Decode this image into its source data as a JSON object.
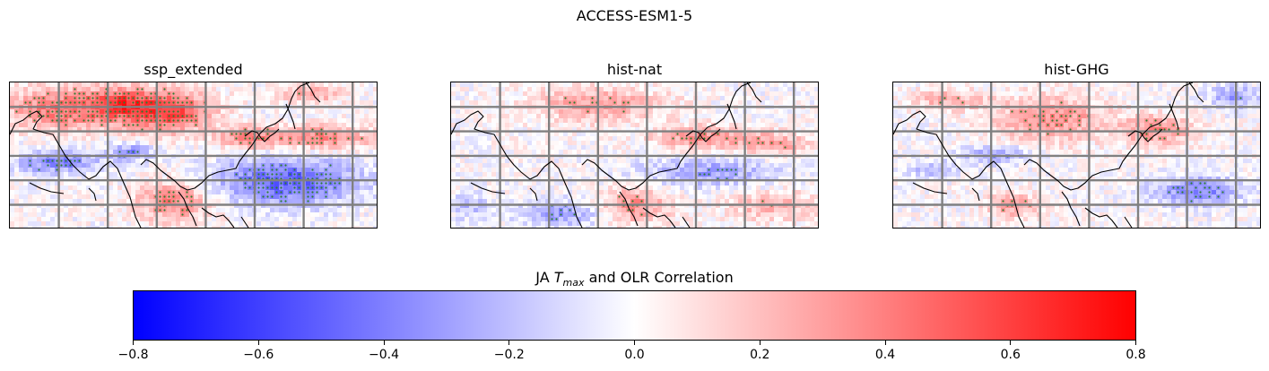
{
  "suptitle": "ACCESS-ESM1-5",
  "panels": [
    {
      "title": "ssp_extended"
    },
    {
      "title": "hist-nat"
    },
    {
      "title": "hist-GHG"
    }
  ],
  "colorbar": {
    "label_prefix": "JA ",
    "label_var": "T",
    "label_sub": "max",
    "label_suffix": " and OLR Correlation",
    "ticks": [
      "−0.8",
      "−0.6",
      "−0.4",
      "−0.2",
      "0.0",
      "0.2",
      "0.4",
      "0.6",
      "0.8"
    ],
    "vmin": -0.8,
    "vmax": 0.8,
    "cmap": "bwr",
    "colors": {
      "low": "#0000ff",
      "mid": "#ffffff",
      "high": "#ff0000"
    }
  },
  "chart_data": {
    "type": "heatmap",
    "title": "ACCESS-ESM1-5",
    "colorbar_label": "JA T_max and OLR Correlation",
    "vmin": -0.8,
    "vmax": 0.8,
    "colormap": "bwr",
    "stipple_color": "#2e7d32",
    "gridline_color": "#808080",
    "coastline_color": "#000000",
    "maps": [
      {
        "name": "ssp_extended",
        "features": [
          {
            "kind": "positive",
            "value": 0.45,
            "cx": 0.15,
            "cy": 0.18,
            "rx": 0.16,
            "ry": 0.15
          },
          {
            "kind": "positive",
            "value": 0.6,
            "cx": 0.43,
            "cy": 0.2,
            "rx": 0.12,
            "ry": 0.14
          },
          {
            "kind": "positive",
            "value": 0.35,
            "cx": 0.3,
            "cy": 0.14,
            "rx": 0.08,
            "ry": 0.1
          },
          {
            "kind": "positive",
            "value": 0.4,
            "cx": 0.85,
            "cy": 0.38,
            "rx": 0.14,
            "ry": 0.08
          },
          {
            "kind": "positive",
            "value": 0.35,
            "cx": 0.65,
            "cy": 0.38,
            "rx": 0.08,
            "ry": 0.08
          },
          {
            "kind": "positive",
            "value": 0.4,
            "cx": 0.45,
            "cy": 0.82,
            "rx": 0.1,
            "ry": 0.14
          },
          {
            "kind": "positive",
            "value": 0.3,
            "cx": 0.82,
            "cy": 0.08,
            "rx": 0.08,
            "ry": 0.06
          },
          {
            "kind": "negative",
            "value": -0.5,
            "cx": 0.75,
            "cy": 0.68,
            "rx": 0.2,
            "ry": 0.16
          },
          {
            "kind": "negative",
            "value": -0.4,
            "cx": 0.13,
            "cy": 0.55,
            "rx": 0.11,
            "ry": 0.08
          },
          {
            "kind": "negative",
            "value": -0.35,
            "cx": 0.33,
            "cy": 0.48,
            "rx": 0.06,
            "ry": 0.06
          }
        ]
      },
      {
        "name": "hist-nat",
        "features": [
          {
            "kind": "positive",
            "value": 0.3,
            "cx": 0.4,
            "cy": 0.15,
            "rx": 0.18,
            "ry": 0.12
          },
          {
            "kind": "positive",
            "value": 0.35,
            "cx": 0.68,
            "cy": 0.38,
            "rx": 0.12,
            "ry": 0.08
          },
          {
            "kind": "positive",
            "value": 0.3,
            "cx": 0.88,
            "cy": 0.42,
            "rx": 0.1,
            "ry": 0.08
          },
          {
            "kind": "positive",
            "value": 0.35,
            "cx": 0.5,
            "cy": 0.85,
            "rx": 0.1,
            "ry": 0.12
          },
          {
            "kind": "positive",
            "value": 0.25,
            "cx": 0.88,
            "cy": 0.85,
            "rx": 0.12,
            "ry": 0.1
          },
          {
            "kind": "negative",
            "value": -0.3,
            "cx": 0.7,
            "cy": 0.62,
            "rx": 0.18,
            "ry": 0.1
          },
          {
            "kind": "negative",
            "value": -0.3,
            "cx": 0.3,
            "cy": 0.9,
            "rx": 0.12,
            "ry": 0.09
          },
          {
            "kind": "negative",
            "value": -0.2,
            "cx": 0.05,
            "cy": 0.85,
            "rx": 0.05,
            "ry": 0.1
          }
        ]
      },
      {
        "name": "hist-GHG",
        "features": [
          {
            "kind": "positive",
            "value": 0.35,
            "cx": 0.43,
            "cy": 0.25,
            "rx": 0.15,
            "ry": 0.15
          },
          {
            "kind": "positive",
            "value": 0.35,
            "cx": 0.72,
            "cy": 0.33,
            "rx": 0.1,
            "ry": 0.1
          },
          {
            "kind": "positive",
            "value": 0.3,
            "cx": 0.33,
            "cy": 0.85,
            "rx": 0.08,
            "ry": 0.08
          },
          {
            "kind": "positive",
            "value": 0.25,
            "cx": 0.15,
            "cy": 0.12,
            "rx": 0.1,
            "ry": 0.07
          },
          {
            "kind": "negative",
            "value": -0.4,
            "cx": 0.83,
            "cy": 0.75,
            "rx": 0.12,
            "ry": 0.1
          },
          {
            "kind": "negative",
            "value": -0.3,
            "cx": 0.28,
            "cy": 0.5,
            "rx": 0.09,
            "ry": 0.06
          },
          {
            "kind": "negative",
            "value": -0.3,
            "cx": 0.93,
            "cy": 0.1,
            "rx": 0.07,
            "ry": 0.08
          },
          {
            "kind": "negative",
            "value": -0.2,
            "cx": 0.1,
            "cy": 0.6,
            "rx": 0.08,
            "ry": 0.06
          }
        ]
      }
    ]
  }
}
